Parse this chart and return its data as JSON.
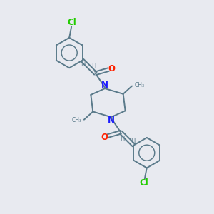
{
  "background_color": "#e8eaf0",
  "bond_color": "#5a7a8a",
  "nitrogen_color": "#1a1aff",
  "oxygen_color": "#ff2200",
  "chlorine_color": "#22cc00",
  "figsize": [
    3.0,
    3.0
  ],
  "dpi": 100,
  "xlim": [
    0,
    10
  ],
  "ylim": [
    0,
    10
  ],
  "ring_r": 0.72,
  "lw": 1.4,
  "fs": 7.5
}
